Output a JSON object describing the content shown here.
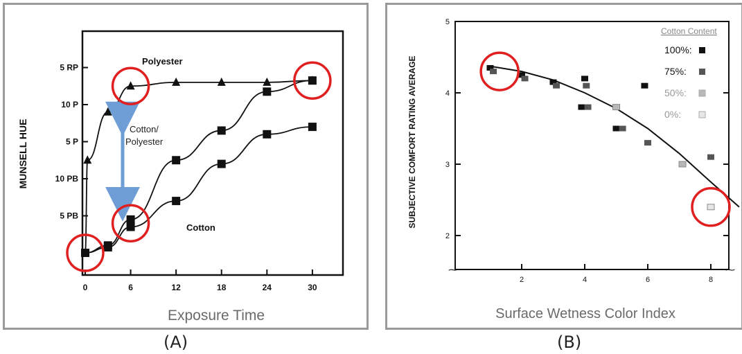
{
  "chart_data": [
    {
      "type": "line",
      "panel_label": "(A)",
      "xlabel": "Exposure Time",
      "ylabel": "MUNSELL HUE",
      "x_ticks": [
        "0",
        "6",
        "12",
        "18",
        "24",
        "30"
      ],
      "y_ticks": [
        "5 RP",
        "10 P",
        "5 P",
        "10 PB",
        "5 PB"
      ],
      "annotations": [
        "Polyester",
        "Cotton/ Polyester",
        "Cotton"
      ],
      "series": [
        {
          "name": "Polyester",
          "marker": "triangle",
          "x": [
            0,
            0.3,
            3,
            6,
            12,
            18,
            24,
            30
          ],
          "y": [
            0,
            2.5,
            3.8,
            4.5,
            4.6,
            4.6,
            4.6,
            4.65
          ]
        },
        {
          "name": "Cotton/ Polyester",
          "marker": "square",
          "x": [
            0,
            3,
            6,
            12,
            18,
            24,
            30
          ],
          "y": [
            0,
            0.2,
            0.9,
            2.5,
            3.3,
            4.35,
            4.65
          ]
        },
        {
          "name": "Cotton",
          "marker": "square",
          "x": [
            0,
            3,
            6,
            12,
            18,
            24,
            30
          ],
          "y": [
            0,
            0.15,
            0.7,
            1.4,
            2.4,
            3.2,
            3.4
          ]
        }
      ],
      "circled_points": [
        [
          0,
          0
        ],
        [
          6,
          0.8
        ],
        [
          6,
          4.5
        ],
        [
          30,
          4.65
        ]
      ],
      "arrow_colour": "#6f9ed6",
      "highlight_colour": "#e02020"
    },
    {
      "type": "scatter",
      "panel_label": "(B)",
      "xlabel": "Surface Wetness Color Index",
      "ylabel": "SUBJECTIVE COMFORT RATING AVERAGE",
      "x_ticks": [
        "2",
        "4",
        "6",
        "8"
      ],
      "y_ticks": [
        "5",
        "4",
        "3",
        "2"
      ],
      "legend_title": "Cotton Content",
      "legend": [
        "100%",
        "75%",
        "50%",
        "0%"
      ],
      "legend_colors": [
        "#111111",
        "#555555",
        "#b8b8b8",
        "#e6e6e6"
      ],
      "points": [
        {
          "x": 1.0,
          "y": 4.35,
          "series": 0
        },
        {
          "x": 1.1,
          "y": 4.3,
          "series": 1
        },
        {
          "x": 2.0,
          "y": 4.25,
          "series": 0
        },
        {
          "x": 2.1,
          "y": 4.2,
          "series": 1
        },
        {
          "x": 3.0,
          "y": 4.15,
          "series": 0
        },
        {
          "x": 3.1,
          "y": 4.1,
          "series": 1
        },
        {
          "x": 4.0,
          "y": 4.2,
          "series": 0
        },
        {
          "x": 4.05,
          "y": 4.1,
          "series": 1
        },
        {
          "x": 3.9,
          "y": 3.8,
          "series": 0
        },
        {
          "x": 4.1,
          "y": 3.8,
          "series": 1
        },
        {
          "x": 5.0,
          "y": 3.8,
          "series": 2
        },
        {
          "x": 5.0,
          "y": 3.5,
          "series": 0
        },
        {
          "x": 5.2,
          "y": 3.5,
          "series": 1
        },
        {
          "x": 5.9,
          "y": 4.1,
          "series": 0
        },
        {
          "x": 6.0,
          "y": 3.3,
          "series": 1
        },
        {
          "x": 7.1,
          "y": 3.0,
          "series": 2
        },
        {
          "x": 8.0,
          "y": 3.1,
          "series": 1
        },
        {
          "x": 8.0,
          "y": 2.4,
          "series": 3
        }
      ],
      "fit_curve": {
        "x": [
          0.9,
          2,
          3,
          4,
          5,
          6,
          7,
          8,
          8.9
        ],
        "y": [
          4.38,
          4.3,
          4.18,
          4.0,
          3.78,
          3.5,
          3.15,
          2.75,
          2.4
        ]
      },
      "circled_points": [
        [
          1.3,
          4.3
        ],
        [
          8.0,
          2.4
        ]
      ],
      "highlight_colour": "#e02020"
    }
  ],
  "captions": {
    "a": "(A)",
    "b": "(B)"
  }
}
